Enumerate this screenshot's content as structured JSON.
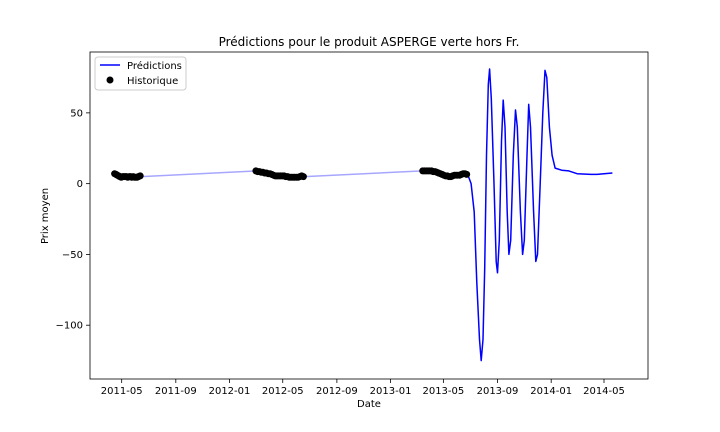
{
  "chart_data": {
    "type": "line",
    "title": "Prédictions pour le produit ASPERGE verte hors Fr.",
    "xlabel": "Date",
    "ylabel": "Prix moyen",
    "xlim": [
      "2011-02-18",
      "2014-08-09"
    ],
    "ylim": [
      -138,
      93
    ],
    "x_ticks": [
      {
        "date": "2011-05-01",
        "label": "2011-05"
      },
      {
        "date": "2011-09-01",
        "label": "2011-09"
      },
      {
        "date": "2012-01-01",
        "label": "2012-01"
      },
      {
        "date": "2012-05-01",
        "label": "2012-05"
      },
      {
        "date": "2012-09-01",
        "label": "2012-09"
      },
      {
        "date": "2013-01-01",
        "label": "2013-01"
      },
      {
        "date": "2013-05-01",
        "label": "2013-05"
      },
      {
        "date": "2013-09-01",
        "label": "2013-09"
      },
      {
        "date": "2014-01-01",
        "label": "2014-01"
      },
      {
        "date": "2014-05-01",
        "label": "2014-05"
      }
    ],
    "y_ticks": [
      {
        "value": 50,
        "label": "50"
      },
      {
        "value": 0,
        "label": "0"
      },
      {
        "value": -50,
        "label": "−50"
      },
      {
        "value": -100,
        "label": "−100"
      }
    ],
    "legend_position": "top-left",
    "series": [
      {
        "name": "Prédictions",
        "kind": "line",
        "color": "#0000ff",
        "points": [
          [
            "2011-06-15",
            5
          ],
          [
            "2012-03-01",
            9
          ],
          [
            "2012-03-20",
            8
          ],
          [
            "2012-04-20",
            5.5
          ],
          [
            "2012-06-20",
            5
          ],
          [
            "2013-03-15",
            9
          ],
          [
            "2013-05-01",
            6.5
          ],
          [
            "2013-06-01",
            6
          ],
          [
            "2013-06-20",
            7
          ],
          [
            "2013-06-26",
            6
          ],
          [
            "2013-07-03",
            0
          ],
          [
            "2013-07-10",
            -20
          ],
          [
            "2013-07-16",
            -70
          ],
          [
            "2013-07-22",
            -110
          ],
          [
            "2013-07-26",
            -125
          ],
          [
            "2013-07-30",
            -110
          ],
          [
            "2013-08-03",
            -60
          ],
          [
            "2013-08-07",
            20
          ],
          [
            "2013-08-11",
            70
          ],
          [
            "2013-08-14",
            81
          ],
          [
            "2013-08-18",
            60
          ],
          [
            "2013-08-24",
            0
          ],
          [
            "2013-08-29",
            -55
          ],
          [
            "2013-09-01",
            -63
          ],
          [
            "2013-09-05",
            -40
          ],
          [
            "2013-09-10",
            30
          ],
          [
            "2013-09-14",
            59
          ],
          [
            "2013-09-18",
            40
          ],
          [
            "2013-09-23",
            -20
          ],
          [
            "2013-09-27",
            -50
          ],
          [
            "2013-10-01",
            -40
          ],
          [
            "2013-10-07",
            20
          ],
          [
            "2013-10-12",
            52
          ],
          [
            "2013-10-16",
            40
          ],
          [
            "2013-10-23",
            -20
          ],
          [
            "2013-10-28",
            -50
          ],
          [
            "2013-11-01",
            -40
          ],
          [
            "2013-11-07",
            20
          ],
          [
            "2013-11-11",
            56
          ],
          [
            "2013-11-15",
            40
          ],
          [
            "2013-11-22",
            -20
          ],
          [
            "2013-11-27",
            -55
          ],
          [
            "2013-12-01",
            -50
          ],
          [
            "2013-12-07",
            0
          ],
          [
            "2013-12-13",
            50
          ],
          [
            "2013-12-18",
            80
          ],
          [
            "2013-12-22",
            75
          ],
          [
            "2013-12-28",
            40
          ],
          [
            "2014-01-03",
            20
          ],
          [
            "2014-01-10",
            11
          ],
          [
            "2014-01-25",
            9.5
          ],
          [
            "2014-02-10",
            9
          ],
          [
            "2014-03-01",
            7
          ],
          [
            "2014-04-01",
            6.5
          ],
          [
            "2014-04-15",
            6.5
          ],
          [
            "2014-05-01",
            7
          ],
          [
            "2014-05-20",
            7.5
          ]
        ]
      },
      {
        "name": "Historique",
        "kind": "scatter",
        "color": "#000000",
        "points": [
          [
            "2011-04-15",
            7
          ],
          [
            "2011-04-18",
            6.5
          ],
          [
            "2011-04-21",
            6
          ],
          [
            "2011-04-24",
            5.5
          ],
          [
            "2011-04-27",
            5
          ],
          [
            "2011-04-30",
            4.5
          ],
          [
            "2011-05-03",
            5
          ],
          [
            "2011-05-06",
            5
          ],
          [
            "2011-05-09",
            5
          ],
          [
            "2011-05-12",
            5
          ],
          [
            "2011-05-15",
            4.5
          ],
          [
            "2011-05-18",
            5
          ],
          [
            "2011-05-21",
            5
          ],
          [
            "2011-05-24",
            4.5
          ],
          [
            "2011-05-27",
            5
          ],
          [
            "2011-05-30",
            4.5
          ],
          [
            "2011-06-02",
            4.5
          ],
          [
            "2011-06-05",
            4.5
          ],
          [
            "2011-06-08",
            5
          ],
          [
            "2011-06-12",
            5.5
          ],
          [
            "2012-03-01",
            9
          ],
          [
            "2012-03-05",
            8.5
          ],
          [
            "2012-03-09",
            8.5
          ],
          [
            "2012-03-13",
            8
          ],
          [
            "2012-03-17",
            8
          ],
          [
            "2012-03-21",
            7.5
          ],
          [
            "2012-03-25",
            7.5
          ],
          [
            "2012-03-29",
            7
          ],
          [
            "2012-04-02",
            7
          ],
          [
            "2012-04-06",
            6.5
          ],
          [
            "2012-04-10",
            6
          ],
          [
            "2012-04-14",
            5.5
          ],
          [
            "2012-04-18",
            5.5
          ],
          [
            "2012-04-22",
            5.5
          ],
          [
            "2012-04-26",
            5.5
          ],
          [
            "2012-04-30",
            5.5
          ],
          [
            "2012-05-04",
            5.5
          ],
          [
            "2012-05-08",
            5
          ],
          [
            "2012-05-12",
            5
          ],
          [
            "2012-05-16",
            4.5
          ],
          [
            "2012-05-20",
            4.5
          ],
          [
            "2012-05-24",
            4.5
          ],
          [
            "2012-05-28",
            4.5
          ],
          [
            "2012-06-01",
            4.5
          ],
          [
            "2012-06-05",
            4.5
          ],
          [
            "2012-06-09",
            5
          ],
          [
            "2012-06-13",
            5.5
          ],
          [
            "2012-06-17",
            5
          ],
          [
            "2013-03-15",
            9
          ],
          [
            "2013-03-19",
            9
          ],
          [
            "2013-03-23",
            9
          ],
          [
            "2013-03-27",
            9
          ],
          [
            "2013-03-31",
            9
          ],
          [
            "2013-04-04",
            9
          ],
          [
            "2013-04-08",
            8.5
          ],
          [
            "2013-04-12",
            8.5
          ],
          [
            "2013-04-16",
            8
          ],
          [
            "2013-04-20",
            7.5
          ],
          [
            "2013-04-24",
            7
          ],
          [
            "2013-04-28",
            6.5
          ],
          [
            "2013-05-02",
            6
          ],
          [
            "2013-05-06",
            5.5
          ],
          [
            "2013-05-10",
            5.5
          ],
          [
            "2013-05-14",
            5
          ],
          [
            "2013-05-18",
            5
          ],
          [
            "2013-05-22",
            5.5
          ],
          [
            "2013-05-26",
            6
          ],
          [
            "2013-05-30",
            6
          ],
          [
            "2013-06-03",
            6
          ],
          [
            "2013-06-07",
            6
          ],
          [
            "2013-06-11",
            6.5
          ],
          [
            "2013-06-15",
            7
          ],
          [
            "2013-06-19",
            7
          ],
          [
            "2013-06-23",
            6.5
          ]
        ]
      }
    ]
  }
}
